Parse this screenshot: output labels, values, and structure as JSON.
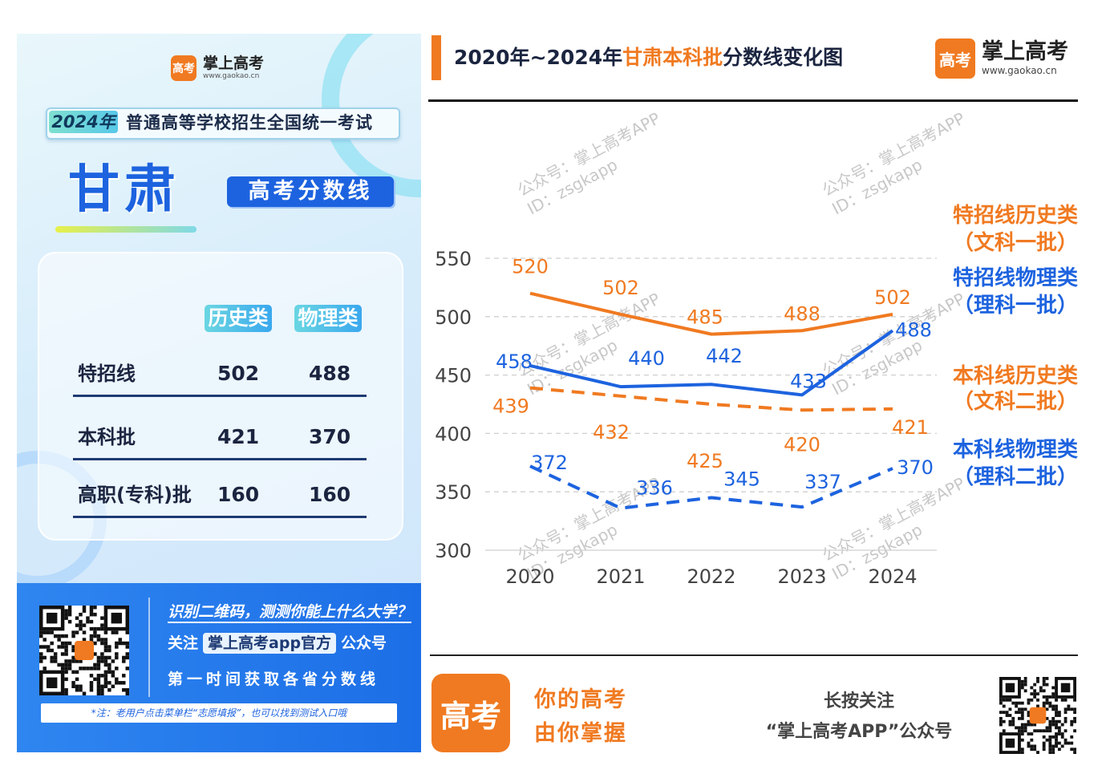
{
  "poster": {
    "brand_name": "掌上高考",
    "brand_url": "www.gaokao.cn",
    "logo_text": "高考",
    "exam_year": "2024年",
    "exam_name": "普通高等学校招生全国统一考试",
    "province": "甘肃",
    "subtitle": "高考分数线",
    "col_history": "历史类",
    "col_physics": "物理类",
    "rows": [
      {
        "name": "特招线",
        "history": "502",
        "physics": "488"
      },
      {
        "name": "本科批",
        "history": "421",
        "physics": "370"
      },
      {
        "name": "高职(专科)批",
        "history": "160",
        "physics": "160"
      }
    ],
    "footer": {
      "line1": "识别二维码，测测你能上什么大学？",
      "follow_prefix": "关注",
      "follow_account": "掌上高考app官方",
      "follow_suffix": "公众号",
      "line3": "第一时间获取各省分数线",
      "note": "*注：老用户点击菜单栏“志愿填报”，也可以找到测试入口哦"
    }
  },
  "chart_header": {
    "title_pre": "2020年~2024年",
    "title_hl": "甘肃本科批",
    "title_post": "分数线变化图",
    "brand_name": "掌上高考",
    "brand_url": "www.gaokao.cn",
    "logo_text": "高考"
  },
  "bottom": {
    "logo_text": "高考",
    "slogan1": "你的高考",
    "slogan2": "由你掌握",
    "follow1": "长按关注",
    "follow2": "“掌上高考APP”公众号"
  },
  "watermark": {
    "line1": "公众号：掌上高考APP",
    "line2": "ID：zsgkapp"
  },
  "colors": {
    "orange": "#f07a21",
    "blue": "#1d63df",
    "footer_blue": "#2f86f0"
  },
  "chart_data": {
    "type": "line",
    "categories": [
      "2020",
      "2021",
      "2022",
      "2023",
      "2024"
    ],
    "ylim": [
      300,
      550
    ],
    "yticks": [
      300,
      350,
      400,
      450,
      500,
      550
    ],
    "grid": true,
    "series": [
      {
        "name": "特招线历史类",
        "name2": "（文科一批）",
        "color": "#f07a21",
        "dash": false,
        "values": [
          520,
          502,
          485,
          488,
          502
        ]
      },
      {
        "name": "特招线物理类",
        "name2": "（理科一批）",
        "color": "#1d63df",
        "dash": false,
        "values": [
          458,
          440,
          442,
          433,
          488
        ]
      },
      {
        "name": "本科线历史类",
        "name2": "（文科二批）",
        "color": "#f07a21",
        "dash": true,
        "values": [
          439,
          432,
          425,
          420,
          421
        ]
      },
      {
        "name": "本科线物理类",
        "name2": "（理科二批）",
        "color": "#1d63df",
        "dash": true,
        "values": [
          372,
          336,
          345,
          337,
          370
        ]
      }
    ]
  }
}
